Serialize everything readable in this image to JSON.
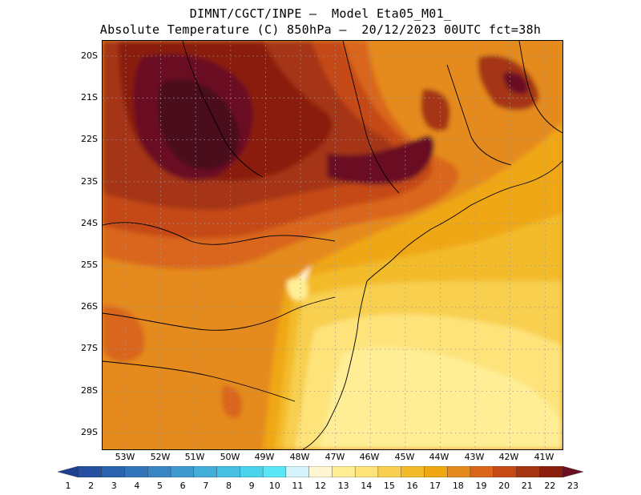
{
  "header": {
    "line1": "DIMNT/CGCT/INPE –  Model Eta05_M01_",
    "line2": "Absolute Temperature (C) 850hPa –  20/12/2023 00UTC fct=38h"
  },
  "map": {
    "lat_labels": [
      "20S",
      "21S",
      "22S",
      "23S",
      "24S",
      "25S",
      "26S",
      "27S",
      "28S",
      "29S"
    ],
    "lon_labels": [
      "53W",
      "52W",
      "51W",
      "50W",
      "49W",
      "48W",
      "47W",
      "46W",
      "45W",
      "44W",
      "43W",
      "42W",
      "41W"
    ]
  },
  "colorbar": {
    "labels": [
      "1",
      "2",
      "3",
      "4",
      "5",
      "6",
      "7",
      "8",
      "9",
      "10",
      "11",
      "12",
      "13",
      "14",
      "15",
      "16",
      "17",
      "18",
      "19",
      "20",
      "21",
      "22",
      "23"
    ],
    "colors": [
      "#1f3f8f",
      "#25509f",
      "#2b62ae",
      "#3274ba",
      "#3a86c4",
      "#3f99cf",
      "#43acd9",
      "#47bfe3",
      "#4bd3ec",
      "#5ae7f5",
      "#d6f3fb",
      "#fff6d2",
      "#ffee95",
      "#fde37a",
      "#f8cf50",
      "#f3bb2a",
      "#efa712",
      "#e58a1e",
      "#d9661a",
      "#c54a16",
      "#a53513",
      "#8a1f10",
      "#6b0f22"
    ]
  }
}
